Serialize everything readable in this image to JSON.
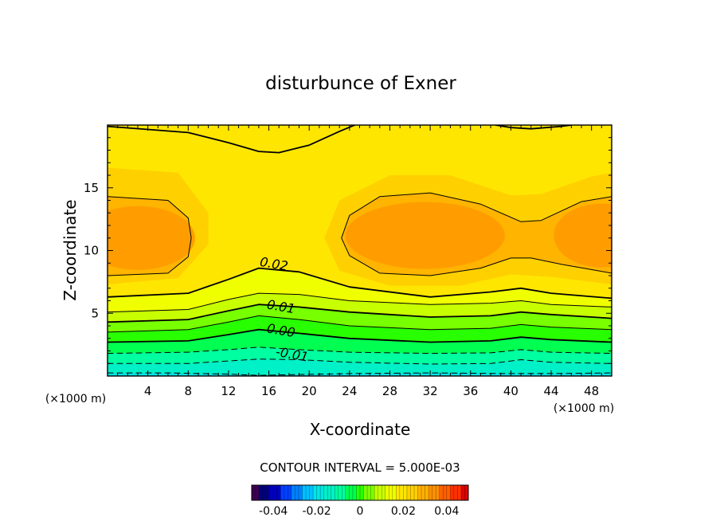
{
  "chart_data": {
    "type": "contour",
    "title": "disturbunce of Exner",
    "xlabel": "X-coordinate",
    "ylabel": "Z-coordinate",
    "x_unit_left": "(×1000 m)",
    "x_unit_right": "(×1000 m)",
    "xlim": [
      0,
      50
    ],
    "ylim": [
      0,
      20
    ],
    "x_ticks": [
      4,
      8,
      12,
      16,
      20,
      24,
      28,
      32,
      36,
      40,
      44,
      48
    ],
    "y_ticks": [
      5,
      10,
      15
    ],
    "contour_interval_text": "CONTOUR INTERVAL = 5.000E-03",
    "contour_interval": 0.005,
    "contour_labels": [
      {
        "text": "0.02",
        "x": 16.5,
        "y": 8.9
      },
      {
        "text": "0.01",
        "x": 17.2,
        "y": 5.5
      },
      {
        "text": "0.00",
        "x": 17.2,
        "y": 3.6
      },
      {
        "text": "-0.01",
        "x": 18.3,
        "y": 1.7
      }
    ],
    "contours": [
      {
        "level": -0.015,
        "style": "dashed",
        "points": [
          [
            0,
            0.25
          ],
          [
            6,
            0.25
          ],
          [
            12,
            0.15
          ],
          [
            15,
            0.05
          ],
          [
            18,
            0.1
          ],
          [
            24,
            0.2
          ],
          [
            32,
            0.25
          ],
          [
            40,
            0.2
          ],
          [
            44,
            0.2
          ],
          [
            50,
            0.25
          ]
        ]
      },
      {
        "level": -0.01,
        "style": "dashed",
        "points": [
          [
            0,
            1.0
          ],
          [
            8,
            1.0
          ],
          [
            12,
            1.2
          ],
          [
            15,
            1.35
          ],
          [
            19,
            1.3
          ],
          [
            24,
            1.1
          ],
          [
            32,
            0.95
          ],
          [
            38,
            1.0
          ],
          [
            41,
            1.3
          ],
          [
            44,
            1.1
          ],
          [
            50,
            1.0
          ]
        ]
      },
      {
        "level": -0.005,
        "style": "dashed",
        "points": [
          [
            0,
            1.8
          ],
          [
            8,
            1.9
          ],
          [
            12,
            2.1
          ],
          [
            15,
            2.3
          ],
          [
            19,
            2.1
          ],
          [
            24,
            1.9
          ],
          [
            32,
            1.8
          ],
          [
            38,
            1.85
          ],
          [
            41,
            2.1
          ],
          [
            44,
            1.9
          ],
          [
            50,
            1.8
          ]
        ]
      },
      {
        "level": 0.0,
        "style": "thick",
        "points": [
          [
            0,
            2.7
          ],
          [
            8,
            2.8
          ],
          [
            12,
            3.3
          ],
          [
            15,
            3.7
          ],
          [
            19,
            3.4
          ],
          [
            24,
            3.0
          ],
          [
            32,
            2.7
          ],
          [
            38,
            2.8
          ],
          [
            41,
            3.1
          ],
          [
            44,
            2.9
          ],
          [
            50,
            2.7
          ]
        ]
      },
      {
        "level": 0.005,
        "style": "thin",
        "points": [
          [
            0,
            3.5
          ],
          [
            8,
            3.7
          ],
          [
            12,
            4.3
          ],
          [
            15,
            4.8
          ],
          [
            19,
            4.5
          ],
          [
            24,
            4.0
          ],
          [
            32,
            3.7
          ],
          [
            38,
            3.8
          ],
          [
            41,
            4.1
          ],
          [
            44,
            3.9
          ],
          [
            50,
            3.7
          ]
        ]
      },
      {
        "level": 0.01,
        "style": "thick",
        "points": [
          [
            0,
            4.3
          ],
          [
            8,
            4.5
          ],
          [
            12,
            5.2
          ],
          [
            15,
            5.7
          ],
          [
            19,
            5.5
          ],
          [
            24,
            5.1
          ],
          [
            32,
            4.7
          ],
          [
            38,
            4.8
          ],
          [
            41,
            5.1
          ],
          [
            44,
            4.9
          ],
          [
            50,
            4.6
          ]
        ]
      },
      {
        "level": 0.015,
        "style": "thin",
        "points": [
          [
            0,
            5.1
          ],
          [
            8,
            5.3
          ],
          [
            12,
            6.1
          ],
          [
            15,
            6.6
          ],
          [
            19,
            6.5
          ],
          [
            24,
            6.0
          ],
          [
            32,
            5.7
          ],
          [
            38,
            5.8
          ],
          [
            41,
            6.0
          ],
          [
            44,
            5.7
          ],
          [
            50,
            5.5
          ]
        ]
      },
      {
        "level": 0.02,
        "style": "thick",
        "points": [
          [
            0,
            6.3
          ],
          [
            8,
            6.6
          ],
          [
            12,
            7.7
          ],
          [
            15,
            8.6
          ],
          [
            19,
            8.3
          ],
          [
            24,
            7.1
          ],
          [
            32,
            6.3
          ],
          [
            38,
            6.7
          ],
          [
            41,
            7.0
          ],
          [
            44,
            6.6
          ],
          [
            50,
            6.2
          ]
        ]
      },
      {
        "level": 0.025,
        "style": "thin",
        "points": [
          [
            0,
            8.0
          ],
          [
            6,
            8.2
          ],
          [
            8,
            9.5
          ],
          [
            8.3,
            11.0
          ],
          [
            8,
            12.6
          ],
          [
            6,
            14.0
          ],
          [
            0,
            14.3
          ]
        ]
      },
      {
        "level": 0.025,
        "style": "thin",
        "points": [
          [
            50,
            8.2
          ],
          [
            45,
            8.9
          ],
          [
            42,
            9.4
          ],
          [
            40,
            9.4
          ],
          [
            37,
            8.6
          ],
          [
            32,
            8.0
          ],
          [
            27,
            8.2
          ],
          [
            24,
            9.6
          ],
          [
            23.2,
            11.0
          ],
          [
            24,
            12.8
          ],
          [
            27,
            14.3
          ],
          [
            32,
            14.6
          ],
          [
            37,
            13.7
          ],
          [
            41,
            12.3
          ],
          [
            43,
            12.4
          ],
          [
            47,
            13.9
          ],
          [
            50,
            14.3
          ]
        ]
      },
      {
        "level": 0.02,
        "style": "thick",
        "points": [
          [
            0,
            19.9
          ],
          [
            8,
            19.4
          ],
          [
            12,
            18.6
          ],
          [
            15,
            17.9
          ],
          [
            17,
            17.8
          ],
          [
            20,
            18.4
          ],
          [
            23,
            19.5
          ],
          [
            24.5,
            20
          ]
        ]
      },
      {
        "level": 0.02,
        "style": "thick",
        "points": [
          [
            38.5,
            20
          ],
          [
            40,
            19.8
          ],
          [
            42,
            19.7
          ],
          [
            45,
            19.9
          ],
          [
            46,
            20
          ]
        ]
      }
    ],
    "fill_bands": [
      {
        "color": "#00E5E5",
        "points": [
          [
            0,
            0
          ],
          [
            50,
            0
          ],
          [
            50,
            0.25
          ],
          [
            44,
            0.2
          ],
          [
            40,
            0.2
          ],
          [
            32,
            0.25
          ],
          [
            24,
            0.2
          ],
          [
            18,
            0.1
          ],
          [
            15,
            0.05
          ],
          [
            12,
            0.15
          ],
          [
            6,
            0.25
          ],
          [
            0,
            0.25
          ]
        ]
      },
      {
        "color": "#00F0C8",
        "upper": [
          [
            0,
            1.0
          ],
          [
            8,
            1.0
          ],
          [
            12,
            1.2
          ],
          [
            15,
            1.35
          ],
          [
            19,
            1.3
          ],
          [
            24,
            1.1
          ],
          [
            32,
            0.95
          ],
          [
            38,
            1.0
          ],
          [
            41,
            1.3
          ],
          [
            44,
            1.1
          ],
          [
            50,
            1.0
          ]
        ]
      },
      {
        "color": "#00FFA0",
        "upper": [
          [
            0,
            1.8
          ],
          [
            8,
            1.9
          ],
          [
            12,
            2.1
          ],
          [
            15,
            2.3
          ],
          [
            19,
            2.1
          ],
          [
            24,
            1.9
          ],
          [
            32,
            1.8
          ],
          [
            38,
            1.85
          ],
          [
            41,
            2.1
          ],
          [
            44,
            1.9
          ],
          [
            50,
            1.8
          ]
        ]
      },
      {
        "color": "#00FF50",
        "upper": [
          [
            0,
            2.7
          ],
          [
            8,
            2.8
          ],
          [
            12,
            3.3
          ],
          [
            15,
            3.7
          ],
          [
            19,
            3.4
          ],
          [
            24,
            3.0
          ],
          [
            32,
            2.7
          ],
          [
            38,
            2.8
          ],
          [
            41,
            3.1
          ],
          [
            44,
            2.9
          ],
          [
            50,
            2.7
          ]
        ]
      },
      {
        "color": "#28FF00",
        "upper": [
          [
            0,
            3.5
          ],
          [
            8,
            3.7
          ],
          [
            12,
            4.3
          ],
          [
            15,
            4.8
          ],
          [
            19,
            4.5
          ],
          [
            24,
            4.0
          ],
          [
            32,
            3.7
          ],
          [
            38,
            3.8
          ],
          [
            41,
            4.1
          ],
          [
            44,
            3.9
          ],
          [
            50,
            3.7
          ]
        ]
      },
      {
        "color": "#78FF00",
        "upper": [
          [
            0,
            4.3
          ],
          [
            8,
            4.5
          ],
          [
            12,
            5.2
          ],
          [
            15,
            5.7
          ],
          [
            19,
            5.5
          ],
          [
            24,
            5.1
          ],
          [
            32,
            4.7
          ],
          [
            38,
            4.8
          ],
          [
            41,
            5.1
          ],
          [
            44,
            4.9
          ],
          [
            50,
            4.6
          ]
        ]
      },
      {
        "color": "#C8FF00",
        "upper": [
          [
            0,
            5.1
          ],
          [
            8,
            5.3
          ],
          [
            12,
            6.1
          ],
          [
            15,
            6.6
          ],
          [
            19,
            6.5
          ],
          [
            24,
            6.0
          ],
          [
            32,
            5.7
          ],
          [
            38,
            5.8
          ],
          [
            41,
            6.0
          ],
          [
            44,
            5.7
          ],
          [
            50,
            5.5
          ]
        ]
      },
      {
        "color": "#F0FF00",
        "upper": [
          [
            0,
            6.3
          ],
          [
            8,
            6.6
          ],
          [
            12,
            7.7
          ],
          [
            15,
            8.6
          ],
          [
            19,
            8.3
          ],
          [
            24,
            7.1
          ],
          [
            32,
            6.3
          ],
          [
            38,
            6.7
          ],
          [
            41,
            7.0
          ],
          [
            44,
            6.6
          ],
          [
            50,
            6.2
          ]
        ]
      }
    ],
    "colorbar": {
      "ticks": [
        "-0.04",
        "-0.02",
        "0",
        "0.02",
        "0.04"
      ],
      "min": -0.05,
      "max": 0.05,
      "colors": [
        "#3C0050",
        "#000080",
        "#0000C0",
        "#0040FF",
        "#0080FF",
        "#00C0FF",
        "#00E5E5",
        "#00F0C8",
        "#00FFA0",
        "#00FF50",
        "#28FF00",
        "#78FF00",
        "#C8FF00",
        "#F0FF00",
        "#FFE600",
        "#FFD000",
        "#FFB000",
        "#FF9000",
        "#FF6000",
        "#FF3000",
        "#E00000"
      ]
    },
    "colors": {
      "upper_base": "#FFE600",
      "upper_mid": "#FFD000",
      "core_1": "#FFB400",
      "core_2": "#FF9A00"
    }
  }
}
